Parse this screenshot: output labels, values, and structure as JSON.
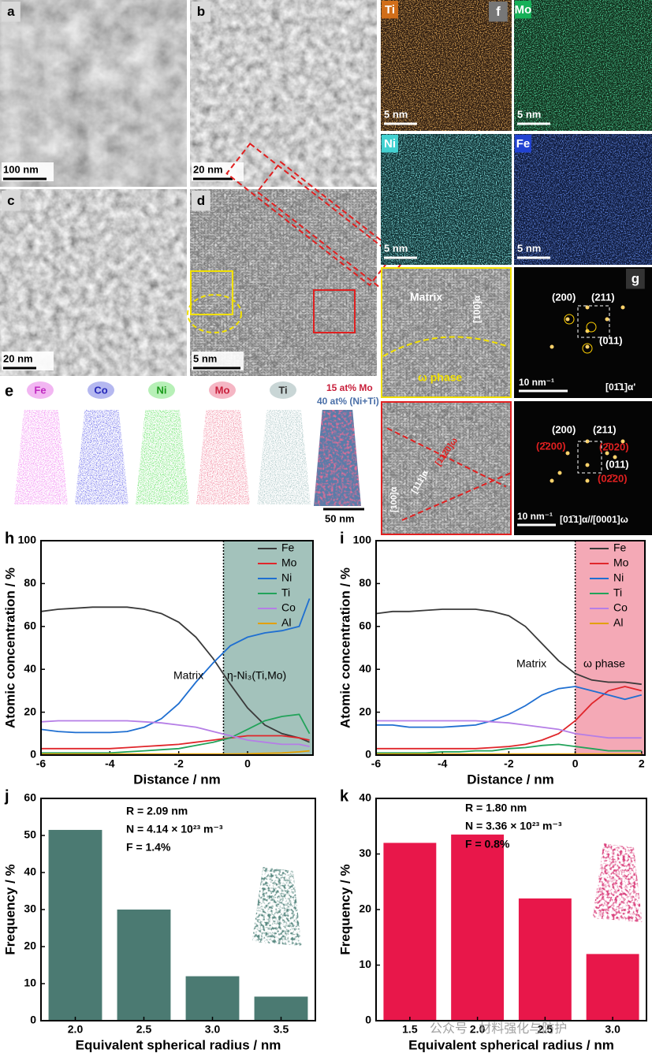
{
  "panels": {
    "a": {
      "label": "a",
      "scale_bar": "100 nm"
    },
    "b": {
      "label": "b",
      "scale_bar": "20 nm"
    },
    "c": {
      "label": "c",
      "scale_bar": "20 nm"
    },
    "d": {
      "label": "d",
      "scale_bar": "5 nm"
    },
    "e": {
      "label": "e",
      "elements": [
        "Fe",
        "Co",
        "Ni",
        "Mo",
        "Ti"
      ],
      "legend": [
        "15 at% Mo",
        "40 at% (Ni+Ti)"
      ],
      "scale_bar": "50 nm"
    },
    "f": {
      "label": "f",
      "maps": [
        {
          "element": "Ti",
          "scale_bar": "5 nm"
        },
        {
          "element": "Mo",
          "scale_bar": "5 nm"
        },
        {
          "element": "Ni",
          "scale_bar": "5 nm"
        },
        {
          "element": "Fe",
          "scale_bar": "5 nm"
        }
      ]
    },
    "g": {
      "label": "g",
      "top": {
        "matrix": "Matrix",
        "direction": "[100]α",
        "phase": "ω phase",
        "fft": [
          "(200)",
          "(211)",
          "(011)"
        ],
        "fft_scale": "10 nm⁻¹",
        "zone": "[01̄1]α'"
      },
      "bottom": {
        "directions": [
          "[100]α",
          "[111]α",
          "[112̄0]ω"
        ],
        "fft": [
          "(200)",
          "(211)",
          "(011)"
        ],
        "fft_red": [
          "(2̄200)",
          "(2̄020)",
          "(02̄20)"
        ],
        "fft_scale": "10 nm⁻¹",
        "zone": "[01̄1]α//[0001]ω"
      }
    }
  },
  "watermark": "公众号 · 材料强化与防护",
  "chart_data": [
    {
      "type": "line",
      "panel": "h",
      "xlabel": "Distance / nm",
      "ylabel": "Atomic concentration / %",
      "x": [
        -6,
        -5.5,
        -5,
        -4.5,
        -4,
        -3.5,
        -3,
        -2.5,
        -2,
        -1.5,
        -1,
        -0.5,
        0,
        0.5,
        1,
        1.5,
        1.8
      ],
      "series": [
        {
          "name": "Fe",
          "color": "#3a3a3a",
          "values": [
            67,
            68,
            68.5,
            69,
            69,
            69,
            68,
            66,
            62,
            55,
            45,
            33,
            22,
            14,
            10,
            8,
            6
          ]
        },
        {
          "name": "Mo",
          "color": "#e0262b",
          "values": [
            3,
            3,
            3,
            3,
            3,
            3.5,
            4,
            4.5,
            5,
            6,
            7,
            8,
            9,
            9,
            9,
            8,
            7
          ]
        },
        {
          "name": "Ni",
          "color": "#1f6fd1",
          "values": [
            12,
            11,
            10.5,
            10.5,
            10.5,
            11,
            13,
            17,
            24,
            34,
            43,
            51,
            55,
            57,
            58,
            60,
            73
          ]
        },
        {
          "name": "Ti",
          "color": "#22a35a",
          "values": [
            1,
            1,
            1,
            1,
            1,
            1.5,
            2,
            2.5,
            3,
            4.5,
            6,
            8,
            12,
            16,
            18,
            19,
            10
          ]
        },
        {
          "name": "Co",
          "color": "#b57ee6",
          "values": [
            15.5,
            16,
            16,
            16,
            16,
            16,
            15.5,
            15,
            14,
            13,
            11,
            9,
            7,
            6,
            5,
            5,
            4
          ]
        },
        {
          "name": "Al",
          "color": "#e3a000",
          "values": [
            0.5,
            0.5,
            0.5,
            0.5,
            0.5,
            0.5,
            0.5,
            0.5,
            0.5,
            0.5,
            0.5,
            0.5,
            0.6,
            0.8,
            1,
            1.5,
            2
          ]
        }
      ],
      "xlim": [
        -6,
        1.9
      ],
      "xticks": [
        -6,
        -4,
        -2,
        0
      ],
      "ylim": [
        0,
        100
      ],
      "yticks": [
        0,
        20,
        40,
        60,
        80,
        100
      ],
      "boundary": -0.7,
      "shade_color": "#a3c2bb",
      "annotations": [
        "Matrix",
        "η-Ni₃(Ti,Mo)"
      ]
    },
    {
      "type": "line",
      "panel": "i",
      "xlabel": "Distance / nm",
      "ylabel": "Atomic concentration / %",
      "x": [
        -6,
        -5.5,
        -5,
        -4.5,
        -4,
        -3.5,
        -3,
        -2.5,
        -2,
        -1.5,
        -1,
        -0.5,
        0,
        0.5,
        1,
        1.5,
        2
      ],
      "series": [
        {
          "name": "Fe",
          "color": "#3a3a3a",
          "values": [
            66,
            67,
            67,
            67.5,
            68,
            68,
            68,
            67,
            65,
            60,
            52,
            44,
            38,
            35,
            34,
            34,
            33
          ]
        },
        {
          "name": "Mo",
          "color": "#e0262b",
          "values": [
            3,
            3,
            3,
            3,
            3,
            3,
            3,
            3.5,
            4,
            5,
            7,
            10,
            16,
            24,
            30,
            32,
            30
          ]
        },
        {
          "name": "Ni",
          "color": "#1f6fd1",
          "values": [
            14,
            14,
            13,
            13,
            13,
            13.5,
            14,
            16,
            19,
            23,
            28,
            31,
            32,
            30,
            28,
            26,
            28
          ]
        },
        {
          "name": "Ti",
          "color": "#22a35a",
          "values": [
            1,
            1,
            1,
            1,
            1.5,
            1.5,
            2,
            2,
            3,
            3.5,
            4.5,
            5,
            4,
            3,
            2,
            2,
            2
          ]
        },
        {
          "name": "Co",
          "color": "#b57ee6",
          "values": [
            16,
            16,
            16,
            16,
            16,
            16,
            16,
            15.5,
            15,
            14,
            13,
            12,
            10,
            9,
            8,
            8,
            8
          ]
        },
        {
          "name": "Al",
          "color": "#e3a000",
          "values": [
            0.5,
            0.5,
            0.5,
            0.5,
            0.5,
            0.5,
            0.5,
            0.5,
            0.5,
            0.5,
            0.5,
            0.5,
            0.5,
            0.5,
            0.5,
            0.5,
            0.5
          ]
        }
      ],
      "xlim": [
        -6,
        2.1
      ],
      "xticks": [
        -6,
        -4,
        -2,
        0,
        2
      ],
      "ylim": [
        0,
        100
      ],
      "yticks": [
        0,
        20,
        40,
        60,
        80,
        100
      ],
      "boundary": 0,
      "shade_color": "#f4a9b6",
      "annotations": [
        "Matrix",
        "ω phase"
      ]
    },
    {
      "type": "bar",
      "panel": "j",
      "xlabel": "Equivalent spherical radius / nm",
      "ylabel": "Frequency / %",
      "categories": [
        "2.0",
        "2.5",
        "3.0",
        "3.5"
      ],
      "values": [
        51.5,
        30,
        12,
        6.5
      ],
      "color": "#4b7a72",
      "ylim": [
        0,
        60
      ],
      "yticks": [
        0,
        10,
        20,
        30,
        40,
        50,
        60
      ],
      "annotations": [
        "R = 2.09 nm",
        "N = 4.14 × 10²³ m⁻³",
        "F = 1.4%"
      ]
    },
    {
      "type": "bar",
      "panel": "k",
      "xlabel": "Equivalent spherical radius / nm",
      "ylabel": "Frequency / %",
      "categories": [
        "1.5",
        "2.0",
        "2.5",
        "3.0"
      ],
      "values": [
        32,
        33.5,
        22,
        12
      ],
      "color": "#e8174a",
      "ylim": [
        0,
        40
      ],
      "yticks": [
        0,
        10,
        20,
        30,
        40
      ],
      "annotations": [
        "R = 1.80 nm",
        "N = 3.36 × 10²³ m⁻³",
        "F = 0.8%"
      ]
    }
  ]
}
